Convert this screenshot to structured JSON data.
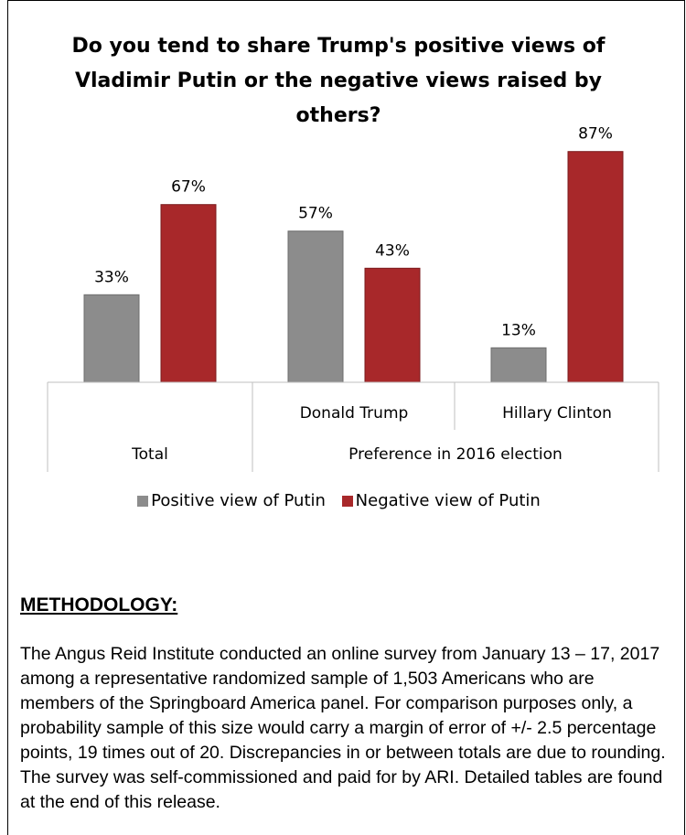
{
  "chart_data": {
    "type": "bar",
    "title": "Do you tend to share Trump's positive views of Vladimir Putin or the negative views raised by others?",
    "categories": [
      "Total",
      "Donald Trump",
      "Hillary Clinton"
    ],
    "group_label": "Preference in 2016 election",
    "series": [
      {
        "name": "Positive view of Putin",
        "values": [
          33,
          57,
          13
        ],
        "labels": [
          "33%",
          "57%",
          "13%"
        ],
        "color": "#8c8c8c"
      },
      {
        "name": "Negative view of Putin",
        "values": [
          67,
          43,
          87
        ],
        "labels": [
          "67%",
          "43%",
          "87%"
        ],
        "color": "#a8282a"
      }
    ],
    "ylim": [
      0,
      100
    ],
    "grid": false,
    "legend": "bottom"
  },
  "methodology": {
    "heading": "METHODOLOGY:",
    "body": "The Angus Reid Institute conducted an online survey from January 13 – 17, 2017 among a representative randomized sample of 1,503 Americans who are members of the Springboard America panel. For comparison purposes only, a probability sample of this size would carry a margin of error of +/- 2.5 percentage points, 19 times out of 20. Discrepancies in or between totals are due to rounding. The survey was self-commissioned and paid for by ARI. Detailed tables are found at the end of this release."
  }
}
